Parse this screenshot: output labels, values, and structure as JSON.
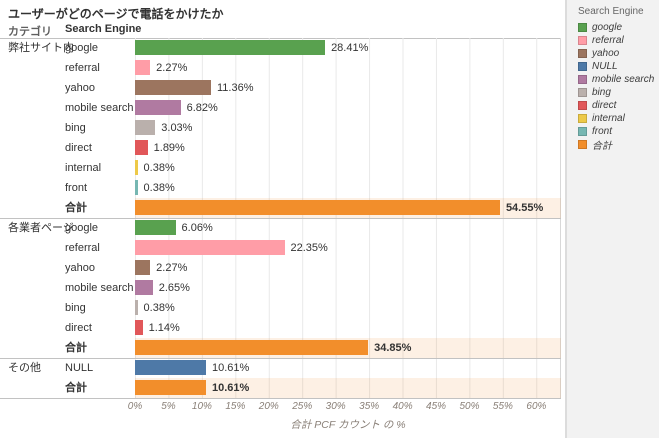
{
  "title": "ユーザーがどのページで電話をかけたか",
  "columns": {
    "category": "カテゴリ",
    "engine": "Search Engine"
  },
  "axis": {
    "label": "合計 PCF カウント の %",
    "ticks": [
      "0%",
      "5%",
      "10%",
      "15%",
      "20%",
      "25%",
      "30%",
      "35%",
      "40%",
      "45%",
      "50%",
      "55%",
      "60%"
    ],
    "min": 0,
    "max": 60,
    "step": 5
  },
  "colors": {
    "google": "#59A14F",
    "referral": "#FF9DA7",
    "yahoo": "#9C755F",
    "NULL": "#4E79A7",
    "mobile search": "#B07AA1",
    "bing": "#BAB0AC",
    "direct": "#E15759",
    "internal": "#EDC948",
    "front": "#76B7B2",
    "合計": "#F28E2B",
    "total_row_band": "#FAF1E4"
  },
  "legend": {
    "title": "Search Engine",
    "items": [
      "google",
      "referral",
      "yahoo",
      "NULL",
      "mobile search",
      "bing",
      "direct",
      "internal",
      "front",
      "合計"
    ]
  },
  "chart_data": {
    "type": "bar",
    "orientation": "horizontal",
    "title": "ユーザーがどのページで電話をかけたか",
    "xlabel": "合計 PCF カウント の %",
    "xlim": [
      0,
      63.5
    ],
    "grid": true,
    "legend_position": "right",
    "groups": [
      {
        "category": "弊社サイト内",
        "rows": [
          {
            "label": "google",
            "value": 28.41,
            "display": "28.41%",
            "total": false
          },
          {
            "label": "referral",
            "value": 2.27,
            "display": "2.27%",
            "total": false
          },
          {
            "label": "yahoo",
            "value": 11.36,
            "display": "11.36%",
            "total": false
          },
          {
            "label": "mobile search",
            "value": 6.82,
            "display": "6.82%",
            "total": false
          },
          {
            "label": "bing",
            "value": 3.03,
            "display": "3.03%",
            "total": false
          },
          {
            "label": "direct",
            "value": 1.89,
            "display": "1.89%",
            "total": false
          },
          {
            "label": "internal",
            "value": 0.38,
            "display": "0.38%",
            "total": false
          },
          {
            "label": "front",
            "value": 0.38,
            "display": "0.38%",
            "total": false
          },
          {
            "label": "合計",
            "value": 54.55,
            "display": "54.55%",
            "total": true
          }
        ]
      },
      {
        "category": "各業者ページ",
        "rows": [
          {
            "label": "google",
            "value": 6.06,
            "display": "6.06%",
            "total": false
          },
          {
            "label": "referral",
            "value": 22.35,
            "display": "22.35%",
            "total": false
          },
          {
            "label": "yahoo",
            "value": 2.27,
            "display": "2.27%",
            "total": false
          },
          {
            "label": "mobile search",
            "value": 2.65,
            "display": "2.65%",
            "total": false
          },
          {
            "label": "bing",
            "value": 0.38,
            "display": "0.38%",
            "total": false
          },
          {
            "label": "direct",
            "value": 1.14,
            "display": "1.14%",
            "total": false
          },
          {
            "label": "合計",
            "value": 34.85,
            "display": "34.85%",
            "total": true
          }
        ]
      },
      {
        "category": "その他",
        "rows": [
          {
            "label": "NULL",
            "value": 10.61,
            "display": "10.61%",
            "total": false
          },
          {
            "label": "合計",
            "value": 10.61,
            "display": "10.61%",
            "total": true
          }
        ]
      }
    ]
  }
}
